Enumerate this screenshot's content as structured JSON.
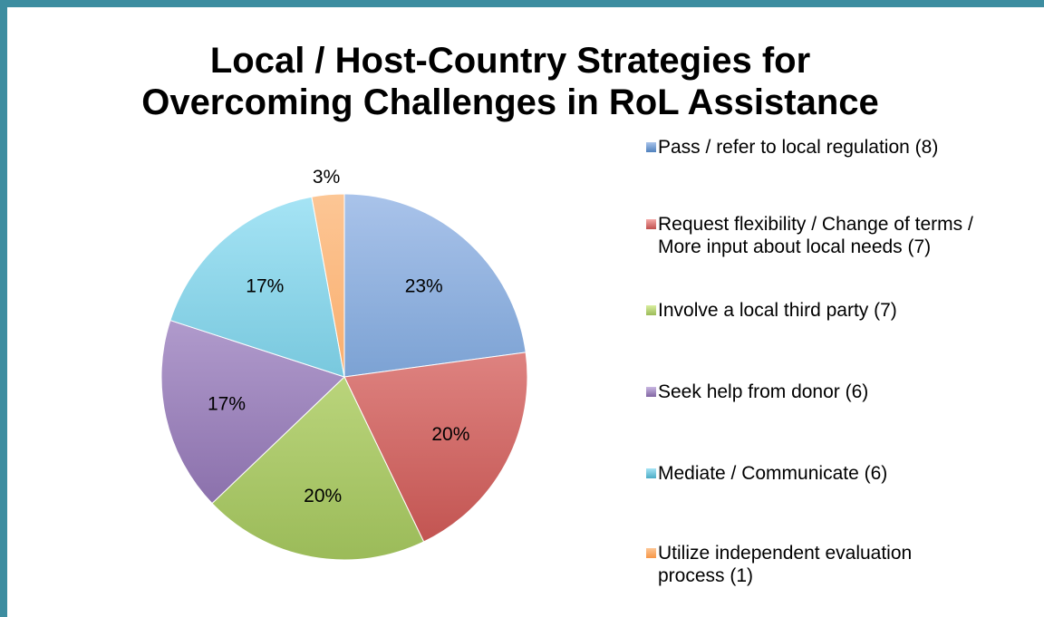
{
  "chart_data": {
    "type": "pie",
    "title_lines": [
      "Local / Host-Country Strategies for",
      "Overcoming Challenges in RoL Assistance"
    ],
    "categories": [
      "Pass / refer to local regulation (8)",
      "Request flexibility / Change of terms / More input about local needs (7)",
      "Involve a local third party (7)",
      "Seek help from donor (6)",
      "Mediate / Communicate (6)",
      "Utilize independent evaluation process (1)"
    ],
    "values": [
      8,
      7,
      7,
      6,
      6,
      1
    ],
    "data_labels": [
      "23%",
      "20%",
      "20%",
      "17%",
      "17%",
      "3%"
    ],
    "colors": [
      "#4f81bd",
      "#c0504d",
      "#9bbb59",
      "#8064a2",
      "#4bacc6",
      "#f79646"
    ],
    "colors_light": [
      "#a9c3ea",
      "#f5a9a7",
      "#d9ee9e",
      "#c9b7e2",
      "#a6e4f5",
      "#fcc695"
    ],
    "legend_position": "right"
  }
}
